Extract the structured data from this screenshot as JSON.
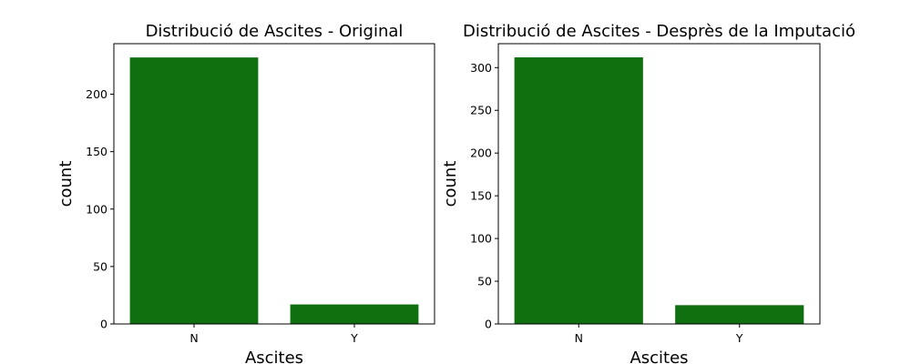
{
  "chart_data": [
    {
      "type": "bar",
      "title": "Distribució de Ascites - Original",
      "xlabel": "Ascites",
      "ylabel": "count",
      "categories": [
        "N",
        "Y"
      ],
      "values": [
        232,
        17
      ],
      "ylim": [
        0,
        244
      ],
      "yticks": [
        0,
        50,
        100,
        150,
        200
      ],
      "grid": false,
      "color": "#107010"
    },
    {
      "type": "bar",
      "title": "Distribució de Ascites - Desprès de la Imputació",
      "xlabel": "Ascites",
      "ylabel": "count",
      "categories": [
        "N",
        "Y"
      ],
      "values": [
        312,
        22
      ],
      "ylim": [
        0,
        328
      ],
      "yticks": [
        0,
        50,
        100,
        150,
        200,
        250,
        300
      ],
      "grid": false,
      "color": "#107010"
    }
  ]
}
